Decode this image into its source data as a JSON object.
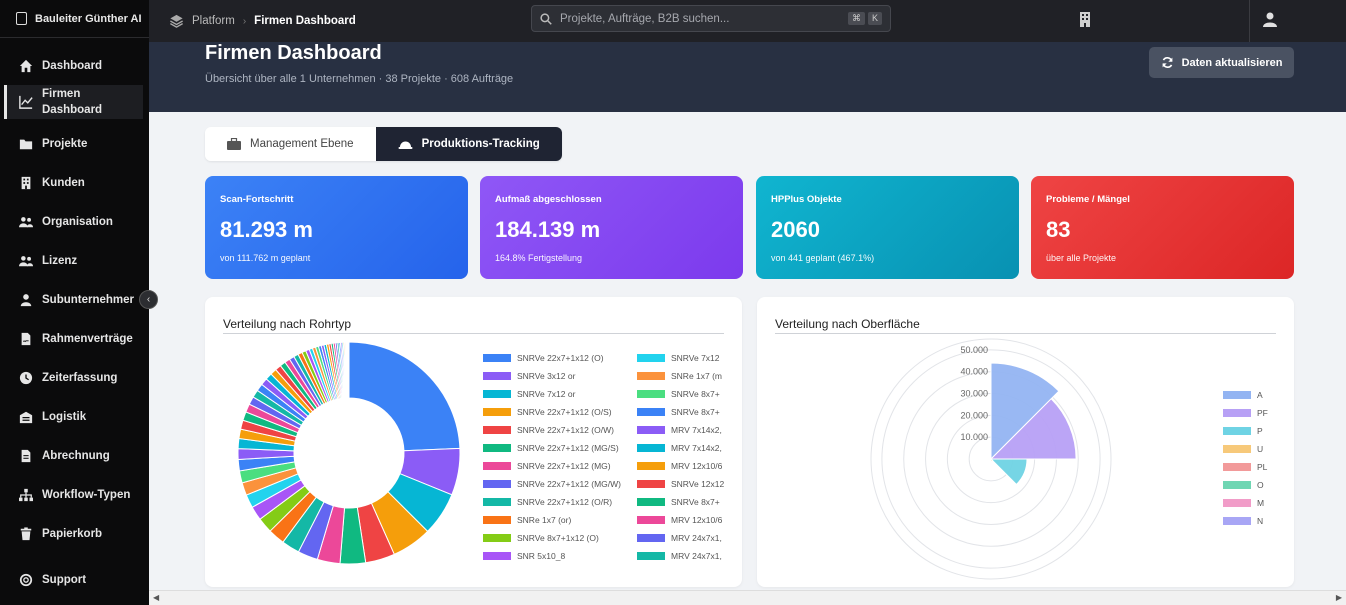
{
  "app": {
    "brand": "Bauleiter Günther AI"
  },
  "sidebar": {
    "items": [
      {
        "label": "Dashboard",
        "icon": "home-icon"
      },
      {
        "label": "Firmen Dashboard",
        "icon": "chart-line-icon",
        "active": true
      },
      {
        "label": "Projekte",
        "icon": "folder-icon"
      },
      {
        "label": "Kunden",
        "icon": "building-icon"
      },
      {
        "label": "Organisation",
        "icon": "users-icon"
      },
      {
        "label": "Lizenz",
        "icon": "users-icon"
      },
      {
        "label": "Subunternehmer",
        "icon": "user-tie-icon"
      },
      {
        "label": "Rahmenverträge",
        "icon": "file-contract-icon"
      },
      {
        "label": "Zeiterfassung",
        "icon": "clock-icon"
      },
      {
        "label": "Logistik",
        "icon": "warehouse-icon"
      },
      {
        "label": "Abrechnung",
        "icon": "invoice-icon"
      },
      {
        "label": "Workflow-Typen",
        "icon": "sitemap-icon"
      },
      {
        "label": "Papierkorb",
        "icon": "trash-icon"
      }
    ],
    "footer": {
      "label": "Support",
      "icon": "lifebuoy-icon"
    },
    "collapse_glyph": "‹"
  },
  "topbar": {
    "breadcrumb": {
      "root": "Platform",
      "separator": "›",
      "current": "Firmen Dashboard"
    },
    "search": {
      "placeholder": "Projekte, Aufträge, B2B suchen...",
      "shortcut": [
        "⌘",
        "K"
      ]
    }
  },
  "header": {
    "title": "Firmen Dashboard",
    "subtitle": "Übersicht über alle 1 Unternehmen · 38 Projekte · 608 Aufträge",
    "refresh_label": "Daten aktualisieren"
  },
  "tabs": [
    {
      "label": "Management Ebene",
      "icon": "briefcase-icon",
      "active": false
    },
    {
      "label": "Produktions-Tracking",
      "icon": "hardhat-icon",
      "active": true
    }
  ],
  "kpis": [
    {
      "label": "Scan-Fortschritt",
      "value": "81.293 m",
      "sub": "von 111.762 m geplant",
      "color": "#3b82f6"
    },
    {
      "label": "Aufmaß abgeschlossen",
      "value": "184.139 m",
      "sub": "164.8% Fertigstellung",
      "color": "#8b5cf6"
    },
    {
      "label": "HPPlus Objekte",
      "value": "2060",
      "sub": "von 441 geplant (467.1%)",
      "color": "#06b6d4"
    },
    {
      "label": "Probleme / Mängel",
      "value": "83",
      "sub": "über alle Projekte",
      "color": "#ef4444"
    }
  ],
  "charts": {
    "rohrtyp_title": "Verteilung nach Rohrtyp",
    "oberflaeche_title": "Verteilung nach Oberfläche"
  },
  "chart_data": [
    {
      "type": "pie",
      "title": "Verteilung nach Rohrtyp",
      "donut": true,
      "legend_col1": [
        "SNRVe 22x7+1x12 (O)",
        "SNRVe 3x12 or",
        "SNRVe 7x12 or",
        "SNRVe 22x7+1x12 (O/S)",
        "SNRVe 22x7+1x12 (O/W)",
        "SNRVe 22x7+1x12 (MG/S)",
        "SNRVe 22x7+1x12 (MG)",
        "SNRVe 22x7+1x12 (MG/W)",
        "SNRVe 22x7+1x12 (O/R)",
        "SNRe 1x7 (or)",
        "SNRVe 8x7+1x12 (O)",
        "SNR 5x10_8"
      ],
      "legend_col2": [
        "SNRVe 7x12",
        "SNRe 1x7 (m",
        "SNRVe 8x7+",
        "SNRVe 8x7+",
        "MRV 7x14x2,",
        "MRV 7x14x2,",
        "MRV 12x10/6",
        "SNRVe 12x12",
        "SNRVe 8x7+",
        "MRV 12x10/6",
        "MRV 24x7x1,",
        "MRV 24x7x1,"
      ],
      "values": [
        25,
        7,
        6.5,
        6,
        4.4,
        3.8,
        3.4,
        3.0,
        2.7,
        2.5,
        2.3,
        2.1,
        2.0,
        1.9,
        1.8,
        1.7,
        1.6,
        1.5,
        1.4,
        1.35,
        1.3,
        1.25,
        1.2,
        1.15,
        1.1,
        1.05,
        1.0,
        0.95,
        0.9,
        0.85,
        0.8,
        0.75,
        0.7,
        0.65,
        0.6,
        0.55,
        0.5,
        0.48,
        0.45,
        0.42,
        0.4,
        0.38,
        0.36,
        0.34,
        0.32,
        0.3,
        0.28,
        0.26,
        0.24,
        0.22,
        0.2,
        0.18,
        0.16,
        0.14,
        0.12,
        0.1,
        0.08,
        0.06
      ],
      "colors": [
        "#3b82f6",
        "#8b5cf6",
        "#06b6d4",
        "#f59e0b",
        "#ef4444",
        "#10b981",
        "#ec4899",
        "#6366f1",
        "#14b8a6",
        "#f97316",
        "#84cc16",
        "#a855f7",
        "#22d3ee",
        "#fb923c",
        "#4ade80",
        "#3b82f6",
        "#8b5cf6",
        "#06b6d4",
        "#f59e0b",
        "#ef4444",
        "#10b981",
        "#ec4899",
        "#6366f1",
        "#14b8a6"
      ]
    },
    {
      "type": "polarArea",
      "title": "Verteilung nach Oberfläche",
      "categories": [
        "A",
        "PF",
        "P",
        "U",
        "PL",
        "O",
        "M",
        "N"
      ],
      "values": [
        44000,
        39000,
        16500,
        1200,
        900,
        600,
        400,
        300
      ],
      "r_ticks": [
        "10.000",
        "20.000",
        "30.000",
        "40.000",
        "50.000"
      ],
      "r_max": 55000,
      "colors": [
        "#93b4f2",
        "#b7a0f5",
        "#6fd3e4",
        "#f7c97a",
        "#f29a9a",
        "#6fd6b3",
        "#f19cc8",
        "#a8a6f5"
      ]
    }
  ]
}
